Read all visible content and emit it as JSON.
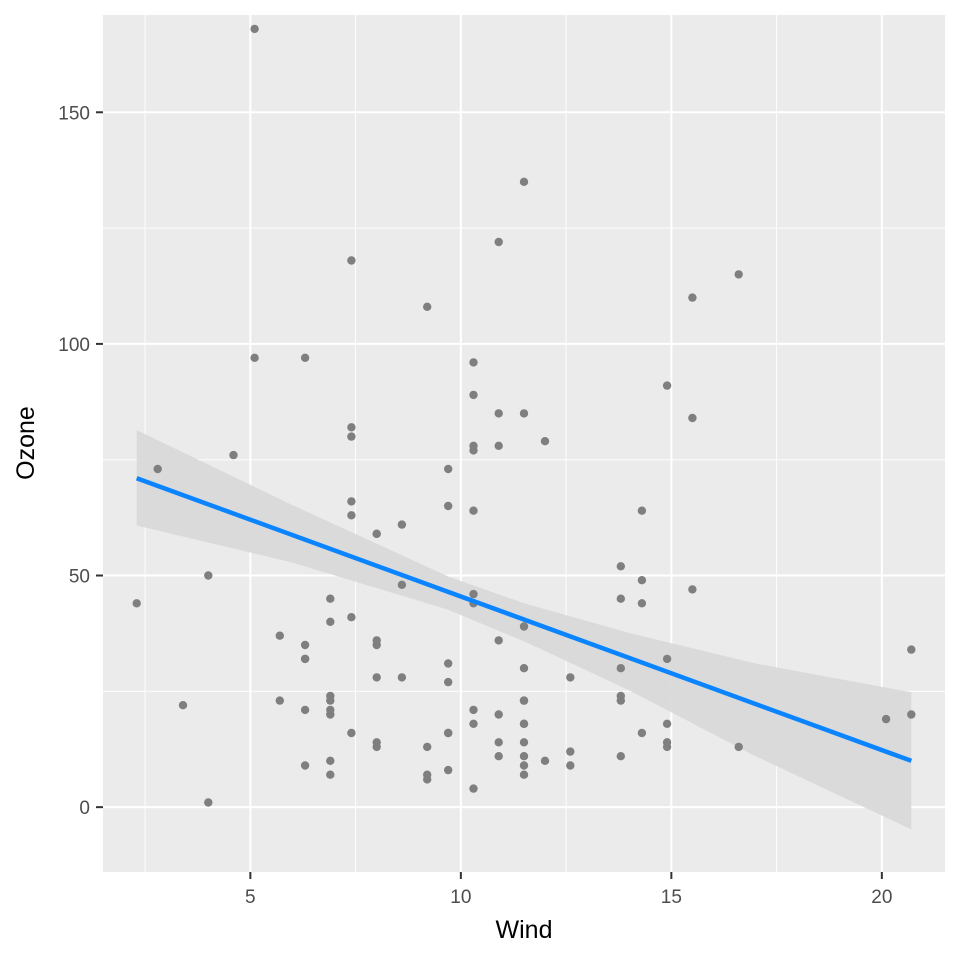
{
  "chart_data": {
    "type": "scatter",
    "xlabel": "Wind",
    "ylabel": "Ozone",
    "xlim": [
      1.5,
      21.5
    ],
    "ylim": [
      -14,
      171
    ],
    "x_ticks": [
      5,
      10,
      15,
      20
    ],
    "y_ticks": [
      0,
      50,
      100,
      150
    ],
    "x_tick_labels": [
      "5",
      "10",
      "15",
      "20"
    ],
    "y_tick_labels": [
      "0",
      "50",
      "100",
      "150"
    ],
    "grid": true,
    "legend": "none",
    "colors": {
      "points": "#7f7f7f",
      "fit_line": "#0a84ff",
      "ribbon": "#d9d9d9",
      "panel": "#ebebeb"
    },
    "points": [
      [
        7.4,
        41
      ],
      [
        8.0,
        36
      ],
      [
        12.6,
        12
      ],
      [
        11.5,
        18
      ],
      [
        8.6,
        28
      ],
      [
        13.8,
        23
      ],
      [
        20.1,
        19
      ],
      [
        9.7,
        8
      ],
      [
        6.9,
        7
      ],
      [
        9.7,
        16
      ],
      [
        13.8,
        11
      ],
      [
        10.9,
        14
      ],
      [
        11.5,
        18
      ],
      [
        14.9,
        14
      ],
      [
        20.7,
        34
      ],
      [
        9.2,
        6
      ],
      [
        11.5,
        30
      ],
      [
        10.9,
        11
      ],
      [
        4.0,
        1
      ],
      [
        11.5,
        11
      ],
      [
        10.3,
        4
      ],
      [
        6.3,
        32
      ],
      [
        6.9,
        23
      ],
      [
        13.8,
        45
      ],
      [
        16.6,
        115
      ],
      [
        5.7,
        37
      ],
      [
        12.0,
        10
      ],
      [
        14.9,
        13
      ],
      [
        11.5,
        135
      ],
      [
        14.3,
        49
      ],
      [
        14.9,
        32
      ],
      [
        14.3,
        64
      ],
      [
        6.9,
        40
      ],
      [
        10.3,
        77
      ],
      [
        6.3,
        97
      ],
      [
        5.1,
        97
      ],
      [
        11.5,
        85
      ],
      [
        6.9,
        10
      ],
      [
        9.7,
        27
      ],
      [
        11.5,
        7
      ],
      [
        8.6,
        48
      ],
      [
        8.0,
        35
      ],
      [
        8.6,
        61
      ],
      [
        12.0,
        79
      ],
      [
        7.4,
        63
      ],
      [
        7.4,
        16
      ],
      [
        7.4,
        80
      ],
      [
        9.2,
        108
      ],
      [
        6.9,
        20
      ],
      [
        13.8,
        52
      ],
      [
        7.4,
        82
      ],
      [
        4.0,
        50
      ],
      [
        10.3,
        64
      ],
      [
        8.0,
        59
      ],
      [
        11.5,
        39
      ],
      [
        11.5,
        9
      ],
      [
        9.7,
        16
      ],
      [
        10.3,
        78
      ],
      [
        6.3,
        35
      ],
      [
        7.4,
        66
      ],
      [
        10.9,
        122
      ],
      [
        10.3,
        89
      ],
      [
        15.5,
        110
      ],
      [
        14.3,
        44
      ],
      [
        12.6,
        28
      ],
      [
        9.7,
        65
      ],
      [
        3.4,
        22
      ],
      [
        8.0,
        59
      ],
      [
        5.7,
        23
      ],
      [
        9.7,
        31
      ],
      [
        2.3,
        44
      ],
      [
        6.3,
        21
      ],
      [
        6.3,
        9
      ],
      [
        6.9,
        45
      ],
      [
        5.1,
        168
      ],
      [
        2.8,
        73
      ],
      [
        4.6,
        76
      ],
      [
        7.4,
        118
      ],
      [
        15.5,
        84
      ],
      [
        10.9,
        85
      ],
      [
        10.3,
        96
      ],
      [
        10.9,
        78
      ],
      [
        9.7,
        73
      ],
      [
        14.9,
        91
      ],
      [
        15.5,
        47
      ],
      [
        6.3,
        32
      ],
      [
        10.9,
        20
      ],
      [
        11.5,
        23
      ],
      [
        6.9,
        21
      ],
      [
        13.8,
        24
      ],
      [
        10.3,
        44
      ],
      [
        10.3,
        21
      ],
      [
        8.0,
        28
      ],
      [
        12.6,
        9
      ],
      [
        9.2,
        13
      ],
      [
        10.3,
        46
      ],
      [
        10.3,
        18
      ],
      [
        16.6,
        13
      ],
      [
        6.9,
        24
      ],
      [
        14.3,
        16
      ],
      [
        8.0,
        13
      ],
      [
        11.5,
        23
      ],
      [
        10.9,
        36
      ],
      [
        9.2,
        7
      ],
      [
        8.0,
        14
      ],
      [
        13.8,
        30
      ],
      [
        11.5,
        14
      ],
      [
        14.9,
        18
      ],
      [
        20.7,
        20
      ]
    ],
    "fit": {
      "method": "lm",
      "x": [
        2.3,
        20.7
      ],
      "y": [
        71.0,
        10.0
      ],
      "band_x": [
        2.3,
        6.0,
        9.7,
        11.5,
        14.0,
        17.0,
        20.7
      ],
      "band_upper": [
        81.4,
        65.2,
        49.8,
        44.0,
        37.6,
        31.0,
        24.8
      ],
      "band_lower": [
        60.8,
        52.8,
        42.6,
        35.8,
        25.2,
        11.0,
        -4.8
      ]
    }
  }
}
